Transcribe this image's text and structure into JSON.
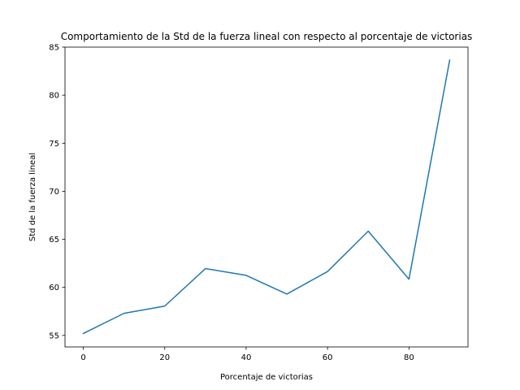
{
  "chart_data": {
    "type": "line",
    "title": "Comportamiento de la Std de la fuerza lineal con respecto al porcentaje de victorias",
    "xlabel": "Porcentaje de victorias",
    "ylabel": "Std de la fuerza lineal",
    "x": [
      0,
      10,
      20,
      30,
      40,
      50,
      60,
      70,
      80,
      90
    ],
    "series": [
      {
        "values": [
          55.2,
          57.3,
          58.05,
          61.95,
          61.25,
          59.3,
          61.65,
          65.85,
          60.85,
          83.65
        ],
        "color": "#1f77b4"
      }
    ],
    "xlim": [
      -4.5,
      94.5
    ],
    "ylim": [
      53.8,
      85.0
    ],
    "xticks": [
      0,
      20,
      40,
      60,
      80
    ],
    "yticks": [
      55,
      60,
      65,
      70,
      75,
      80,
      85
    ],
    "grid": false,
    "legend": "none"
  }
}
